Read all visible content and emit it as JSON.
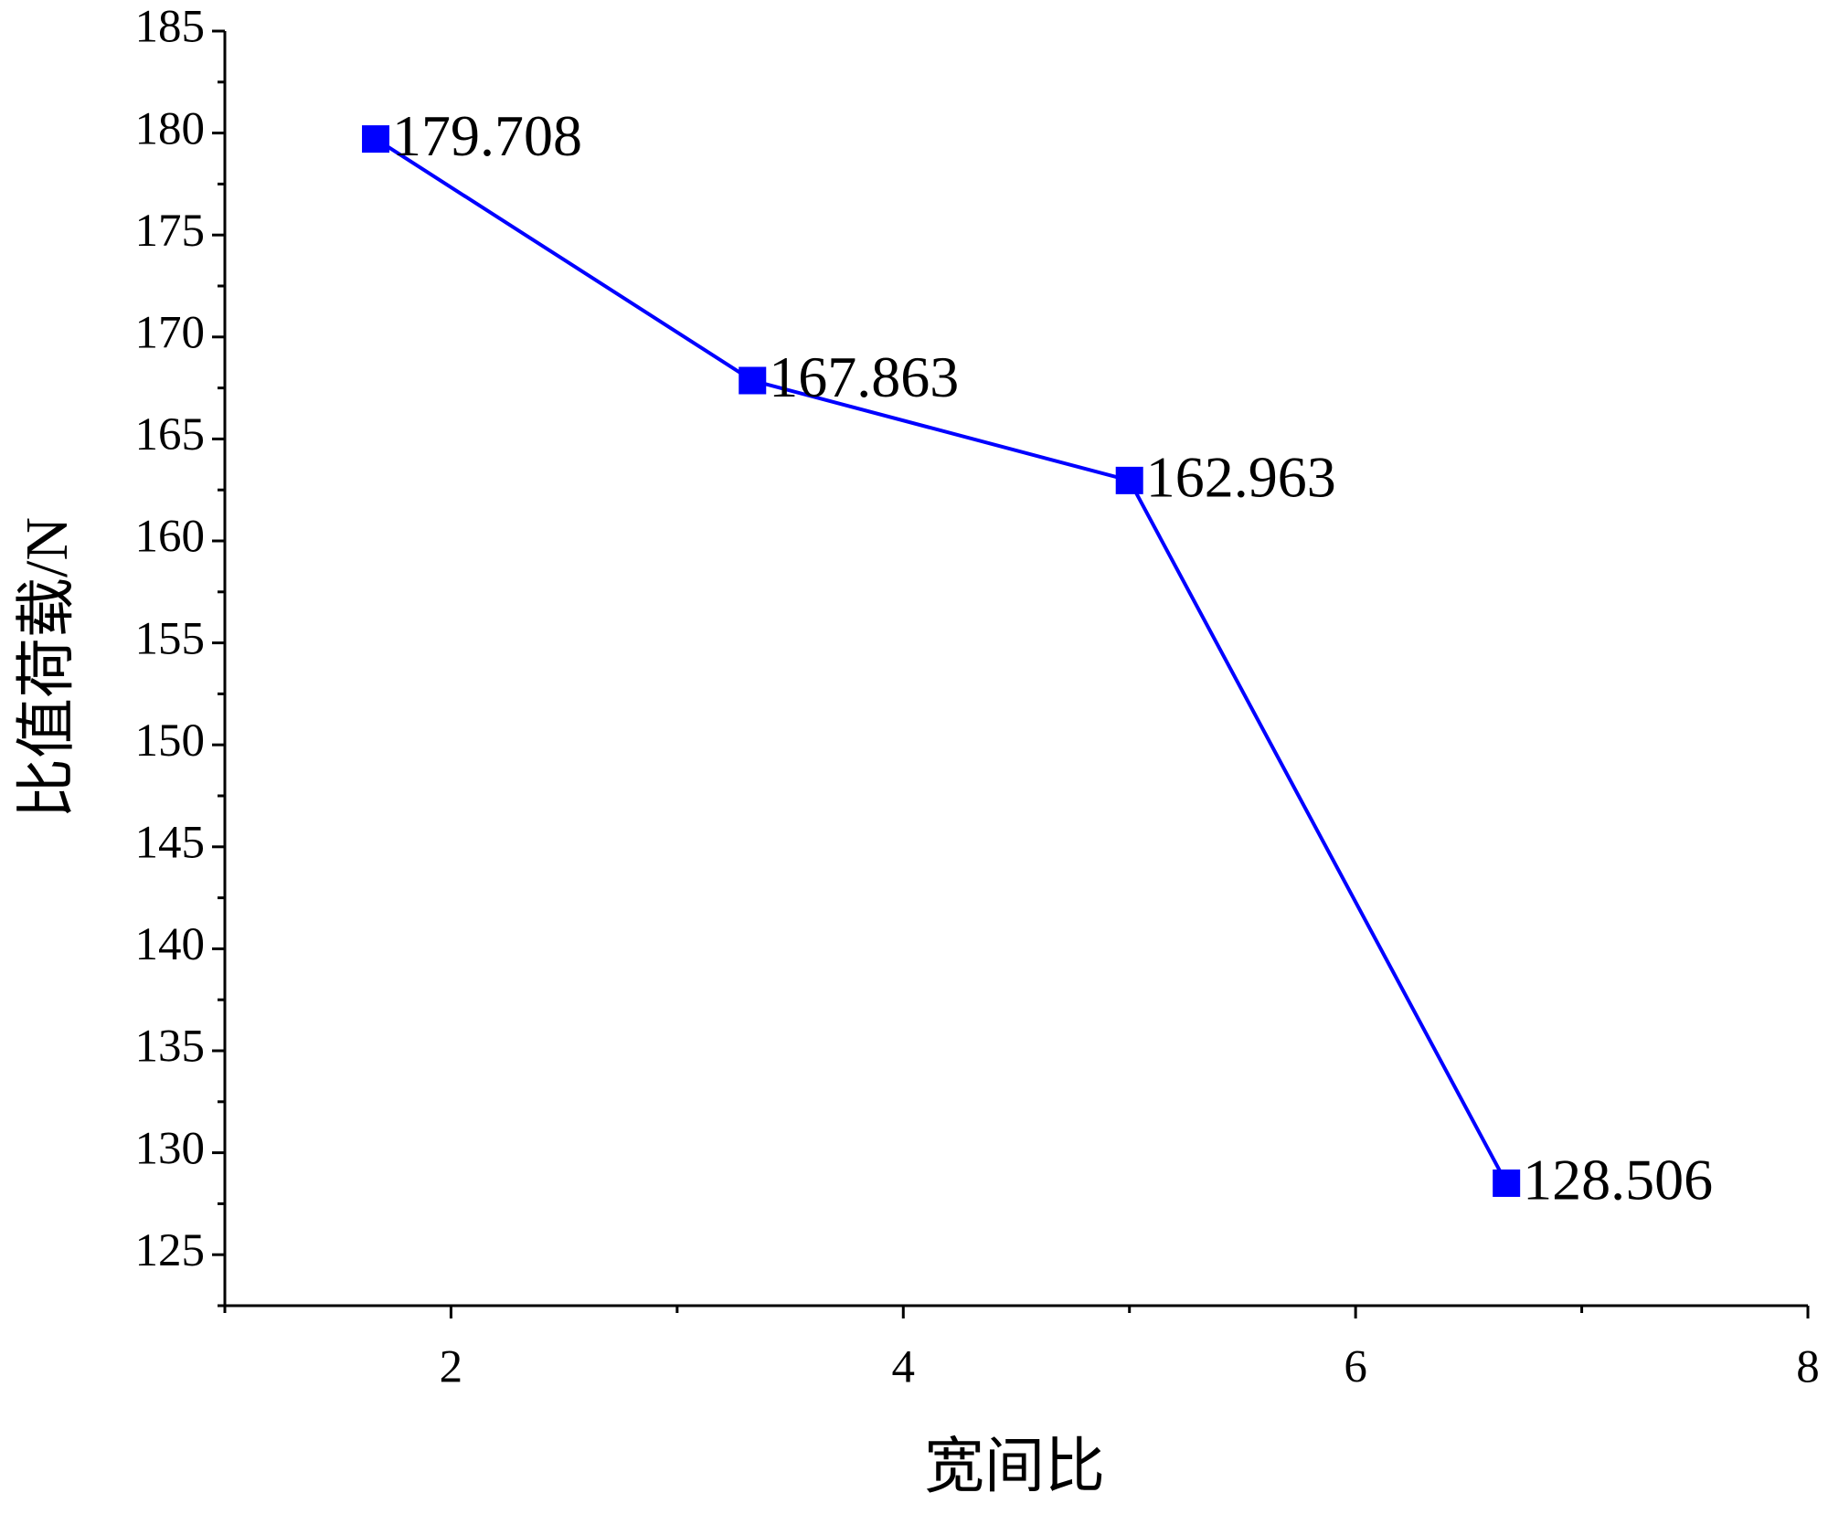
{
  "chart_data": {
    "type": "line",
    "x_label": "宽间比",
    "y_label": "比值荷载/N",
    "x": [
      1.667,
      3.333,
      5,
      6.667
    ],
    "series": [
      {
        "name": "比值荷载",
        "color": "#0000ff",
        "values": [
          179.708,
          167.863,
          162.963,
          128.506
        ]
      }
    ],
    "xlim": [
      1,
      8
    ],
    "xticks": [
      2,
      4,
      6,
      8
    ],
    "ylim": [
      122.5,
      185
    ],
    "yticks": [
      125,
      130,
      135,
      140,
      145,
      150,
      155,
      160,
      165,
      170,
      175,
      180,
      185
    ],
    "grid": false,
    "data_labels": true
  }
}
